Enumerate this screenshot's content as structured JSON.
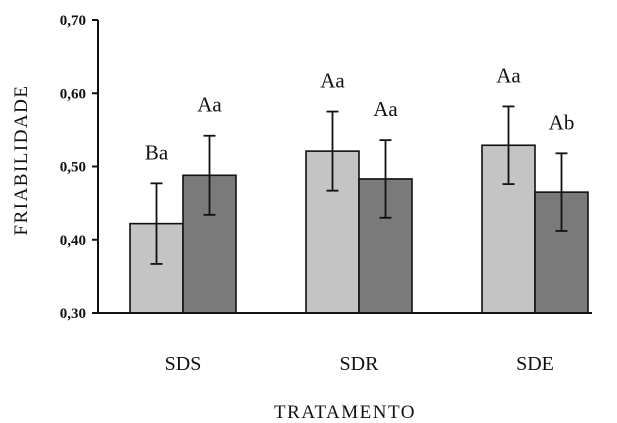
{
  "chart_data": {
    "type": "bar",
    "title": "",
    "xlabel": "TRATAMENTO",
    "ylabel": "FRIABILIDADE",
    "ylim": [
      0.3,
      0.7
    ],
    "yticks": [
      0.3,
      0.4,
      0.5,
      0.6,
      0.7
    ],
    "ytick_labels": [
      "0,30",
      "0,40",
      "0,50",
      "0,60",
      "0,70"
    ],
    "categories": [
      "SDS",
      "SDR",
      "SDE"
    ],
    "grid": false,
    "legend": "none",
    "series": [
      {
        "color": "#c4c4c4",
        "values": [
          0.422,
          0.521,
          0.529
        ],
        "error": [
          0.055,
          0.054,
          0.053
        ],
        "labels": [
          "Ba",
          "Aa",
          "Aa"
        ]
      },
      {
        "color": "#7a7a7a",
        "values": [
          0.488,
          0.483,
          0.465
        ],
        "error": [
          0.054,
          0.053,
          0.053
        ],
        "labels": [
          "Aa",
          "Aa",
          "Ab"
        ]
      }
    ]
  }
}
